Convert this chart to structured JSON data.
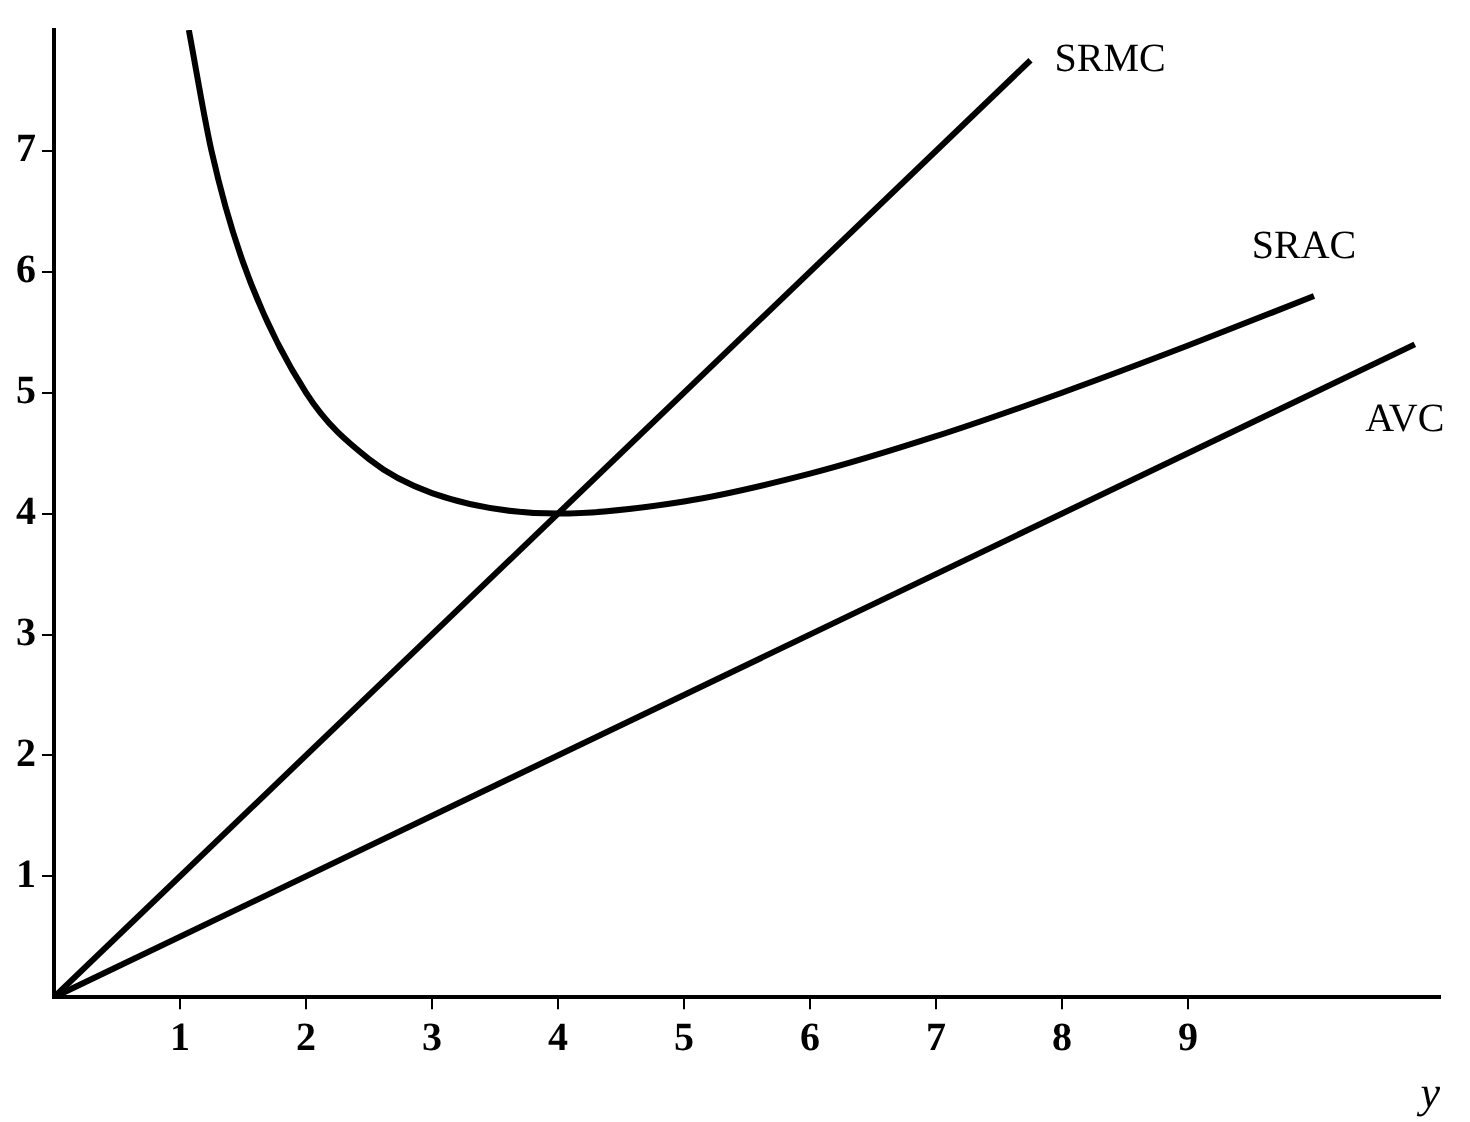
{
  "chart_data": {
    "type": "line",
    "xlabel": "y",
    "xlim": [
      0,
      11
    ],
    "ylim": [
      0,
      8
    ],
    "xticks": [
      1,
      2,
      3,
      4,
      5,
      6,
      7,
      8,
      9
    ],
    "yticks": [
      1,
      2,
      3,
      4,
      5,
      6,
      7
    ],
    "grid": false,
    "legend": false,
    "marker": "none",
    "line_style": "solid",
    "series": [
      {
        "name": "SRMC",
        "color": "#000000",
        "x": [
          0,
          7.75
        ],
        "values": [
          0,
          7.75
        ]
      },
      {
        "name": "SRAC",
        "color": "#000000",
        "x": [
          1.07,
          1.25,
          1.5,
          2,
          2.5,
          3,
          4,
          5,
          6,
          7,
          8,
          9,
          10
        ],
        "values": [
          8,
          7,
          6.08,
          5,
          4.45,
          4.17,
          4,
          4.1,
          4.33,
          4.64,
          5,
          5.39,
          5.8
        ]
      },
      {
        "name": "AVC",
        "color": "#000000",
        "x": [
          0,
          10.8
        ],
        "values": [
          0,
          5.4
        ]
      }
    ]
  }
}
